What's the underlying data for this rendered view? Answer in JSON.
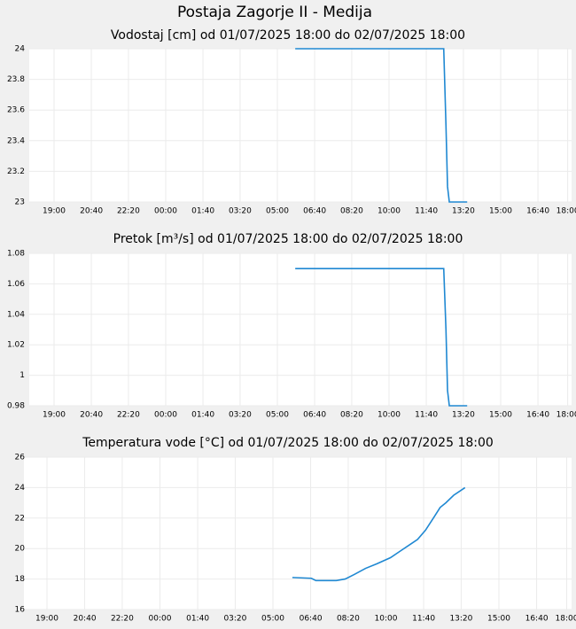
{
  "title": "Postaja Zagorje II - Medija",
  "chart_data": [
    {
      "type": "line",
      "title": "Vodostaj [cm] od 01/07/2025 18:00 do 02/07/2025 18:00",
      "color": "#1f88d2",
      "grid": true,
      "xlim": [
        0,
        24
      ],
      "ylim": [
        23,
        24
      ],
      "xticks": [
        {
          "value": 1,
          "label": "19:00"
        },
        {
          "value": 2.67,
          "label": "20:40"
        },
        {
          "value": 4.33,
          "label": "22:20"
        },
        {
          "value": 6,
          "label": "00:00"
        },
        {
          "value": 7.67,
          "label": "01:40"
        },
        {
          "value": 9.33,
          "label": "03:20"
        },
        {
          "value": 11,
          "label": "05:00"
        },
        {
          "value": 12.67,
          "label": "06:40"
        },
        {
          "value": 14.33,
          "label": "08:20"
        },
        {
          "value": 16,
          "label": "10:00"
        },
        {
          "value": 17.67,
          "label": "11:40"
        },
        {
          "value": 19.33,
          "label": "13:20"
        },
        {
          "value": 21,
          "label": "15:00"
        },
        {
          "value": 22.67,
          "label": "16:40"
        },
        {
          "value": 24,
          "label": "18:00"
        }
      ],
      "yticks": [
        23,
        23.2,
        23.4,
        23.6,
        23.8,
        24
      ],
      "x": [
        11.8,
        18.45,
        18.55,
        18.62,
        18.7,
        19.5
      ],
      "values": [
        24,
        24,
        23.5,
        23.1,
        23,
        23
      ]
    },
    {
      "type": "line",
      "title": "Pretok [m³/s] od 01/07/2025 18:00 do 02/07/2025 18:00",
      "color": "#1f88d2",
      "grid": true,
      "xlim": [
        0,
        24
      ],
      "ylim": [
        0.98,
        1.08
      ],
      "xticks": [
        {
          "value": 1,
          "label": "19:00"
        },
        {
          "value": 2.67,
          "label": "20:40"
        },
        {
          "value": 4.33,
          "label": "22:20"
        },
        {
          "value": 6,
          "label": "00:00"
        },
        {
          "value": 7.67,
          "label": "01:40"
        },
        {
          "value": 9.33,
          "label": "03:20"
        },
        {
          "value": 11,
          "label": "05:00"
        },
        {
          "value": 12.67,
          "label": "06:40"
        },
        {
          "value": 14.33,
          "label": "08:20"
        },
        {
          "value": 16,
          "label": "10:00"
        },
        {
          "value": 17.67,
          "label": "11:40"
        },
        {
          "value": 19.33,
          "label": "13:20"
        },
        {
          "value": 21,
          "label": "15:00"
        },
        {
          "value": 22.67,
          "label": "16:40"
        },
        {
          "value": 24,
          "label": "18:00"
        }
      ],
      "yticks": [
        0.98,
        1,
        1.02,
        1.04,
        1.06,
        1.08
      ],
      "x": [
        11.8,
        18.45,
        18.55,
        18.62,
        18.7,
        19.5
      ],
      "values": [
        1.07,
        1.07,
        1.03,
        0.99,
        0.98,
        0.98
      ]
    },
    {
      "type": "line",
      "title": "Temperatura vode [°C] od 01/07/2025 18:00 do 02/07/2025 18:00",
      "color": "#1f88d2",
      "grid": true,
      "xlim": [
        0,
        24
      ],
      "ylim": [
        16,
        26
      ],
      "xticks": [
        {
          "value": 1,
          "label": "19:00"
        },
        {
          "value": 2.67,
          "label": "20:40"
        },
        {
          "value": 4.33,
          "label": "22:20"
        },
        {
          "value": 6,
          "label": "00:00"
        },
        {
          "value": 7.67,
          "label": "01:40"
        },
        {
          "value": 9.33,
          "label": "03:20"
        },
        {
          "value": 11,
          "label": "05:00"
        },
        {
          "value": 12.67,
          "label": "06:40"
        },
        {
          "value": 14.33,
          "label": "08:20"
        },
        {
          "value": 16,
          "label": "10:00"
        },
        {
          "value": 17.67,
          "label": "11:40"
        },
        {
          "value": 19.33,
          "label": "13:20"
        },
        {
          "value": 21,
          "label": "15:00"
        },
        {
          "value": 22.67,
          "label": "16:40"
        },
        {
          "value": 24,
          "label": "18:00"
        }
      ],
      "yticks": [
        16,
        18,
        20,
        22,
        24,
        26
      ],
      "x": [
        11.86,
        12.7,
        12.9,
        13.8,
        14.2,
        14.6,
        15.1,
        15.6,
        16.2,
        16.6,
        17.1,
        17.4,
        17.75,
        18.1,
        18.4,
        18.65,
        19.0,
        19.5
      ],
      "values": [
        18.1,
        18.05,
        17.9,
        17.9,
        18.0,
        18.3,
        18.7,
        19.0,
        19.4,
        19.8,
        20.3,
        20.6,
        21.2,
        22.0,
        22.7,
        23.0,
        23.5,
        24.0
      ]
    }
  ]
}
